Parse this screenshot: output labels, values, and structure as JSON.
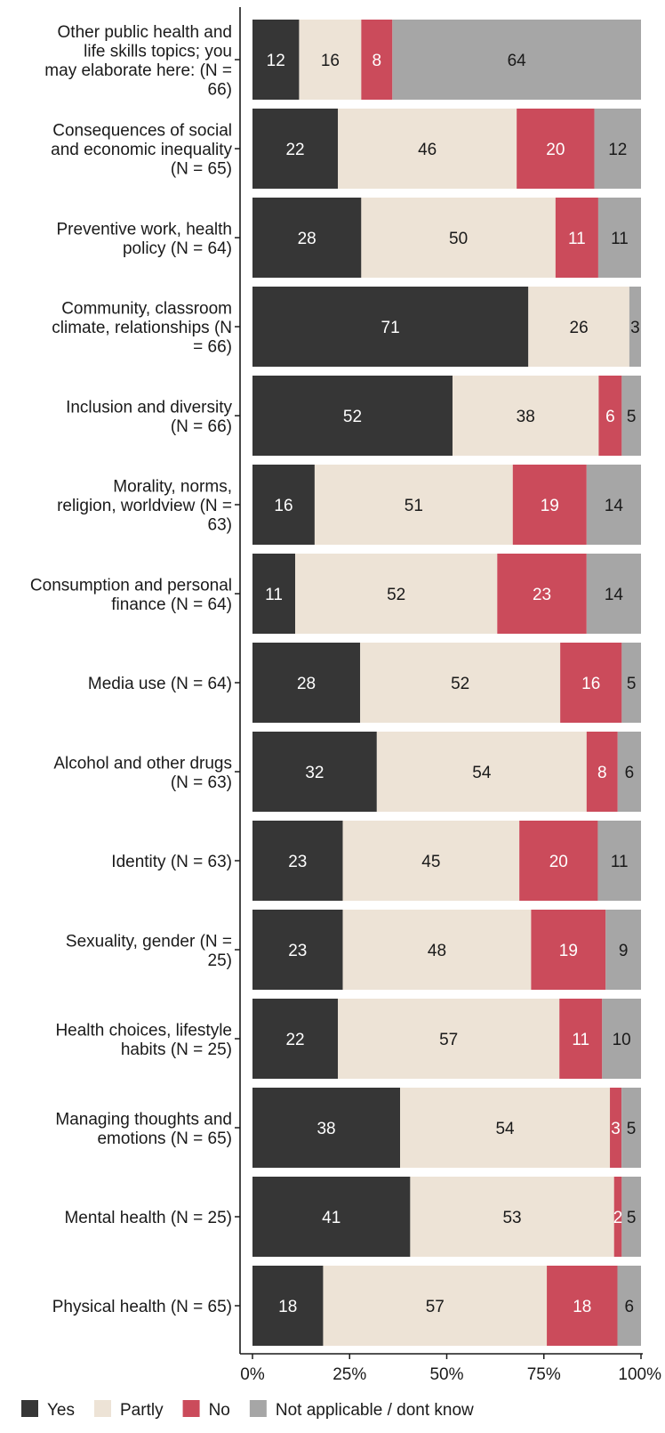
{
  "chart_data": {
    "type": "bar",
    "orientation": "horizontal",
    "stacked": "percent",
    "categories": [
      "Other public health and life skills topics; you may elaborate here: (N = 66)",
      "Consequences of social and economic inequality (N = 65)",
      "Preventive work, health policy (N = 64)",
      "Community, classroom climate, relationships (N = 66)",
      "Inclusion and diversity (N = 66)",
      "Morality, norms, religion, worldview (N = 63)",
      "Consumption and personal finance (N = 64)",
      "Media use (N = 64)",
      "Alcohol and other drugs (N = 63)",
      "Identity (N = 63)",
      "Sexuality, gender (N = 25)",
      "Health choices, lifestyle habits (N = 25)",
      "Managing thoughts and emotions (N = 65)",
      "Mental health (N = 25)",
      "Physical health (N = 65)"
    ],
    "category_lines": [
      [
        "Other public health and",
        "life skills topics; you",
        "may elaborate here: (N =",
        "66)"
      ],
      [
        "Consequences of social",
        "and economic inequality",
        "(N = 65)"
      ],
      [
        "Preventive work, health",
        "policy (N = 64)"
      ],
      [
        "Community, classroom",
        "climate, relationships (N",
        "= 66)"
      ],
      [
        "Inclusion and diversity",
        "(N = 66)"
      ],
      [
        "Morality, norms,",
        "religion, worldview (N =",
        "63)"
      ],
      [
        "Consumption and personal",
        "finance (N = 64)"
      ],
      [
        "Media use (N = 64)"
      ],
      [
        "Alcohol and other drugs",
        "(N = 63)"
      ],
      [
        "Identity (N = 63)"
      ],
      [
        "Sexuality, gender (N =",
        "25)"
      ],
      [
        "Health choices, lifestyle",
        "habits (N = 25)"
      ],
      [
        "Managing thoughts and",
        "emotions (N = 65)"
      ],
      [
        "Mental health (N = 25)"
      ],
      [
        "Physical health (N = 65)"
      ]
    ],
    "series": [
      {
        "name": "Yes",
        "color": "#363636",
        "label_color": "#ffffff",
        "values": [
          12,
          22,
          28,
          71,
          52,
          16,
          11,
          28,
          32,
          23,
          23,
          22,
          38,
          41,
          18
        ]
      },
      {
        "name": "Partly",
        "color": "#ede3d6",
        "label_color": "#1a1a1a",
        "values": [
          16,
          46,
          50,
          26,
          38,
          51,
          52,
          52,
          54,
          45,
          48,
          57,
          54,
          53,
          57
        ]
      },
      {
        "name": "No",
        "color": "#cb4b5b",
        "label_color": "#ffffff",
        "values": [
          8,
          20,
          11,
          0,
          6,
          19,
          23,
          16,
          8,
          20,
          19,
          11,
          3,
          2,
          18
        ]
      },
      {
        "name": "Not applicable / dont know",
        "color": "#a6a6a6",
        "label_color": "#1a1a1a",
        "values": [
          64,
          12,
          11,
          3,
          5,
          14,
          14,
          5,
          6,
          11,
          9,
          10,
          5,
          5,
          6
        ]
      }
    ],
    "x_ticks": [
      "0%",
      "25%",
      "50%",
      "75%",
      "100%"
    ],
    "xlim": [
      0,
      100
    ],
    "xlabel": "",
    "ylabel": "",
    "title": "",
    "grid": false,
    "legend_position": "bottom-left"
  }
}
